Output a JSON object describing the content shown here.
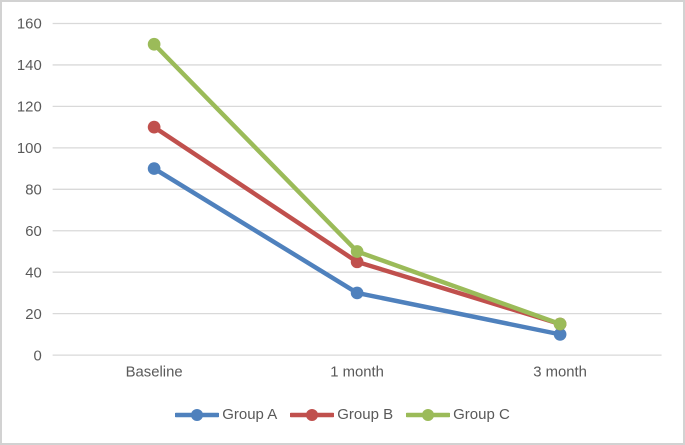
{
  "chart_data": {
    "type": "line",
    "title": "",
    "xlabel": "",
    "ylabel": "",
    "categories": [
      "Baseline",
      "1 month",
      "3 month"
    ],
    "series": [
      {
        "name": "Group A",
        "color": "#4F81BD",
        "values": [
          90,
          30,
          10
        ]
      },
      {
        "name": "Group B",
        "color": "#C0504D",
        "values": [
          110,
          45,
          15
        ]
      },
      {
        "name": "Group C",
        "color": "#9BBB59",
        "values": [
          150,
          50,
          15
        ]
      }
    ],
    "ylim": [
      0,
      160
    ],
    "yticks": [
      0,
      20,
      40,
      60,
      80,
      100,
      120,
      140,
      160
    ],
    "grid": true,
    "gridline_color": "#D9D9D9",
    "axis_text_color": "#595959",
    "background_color": "#FFFFFF",
    "frame_border_color": "#D2D2D2",
    "legend_position": "bottom-center",
    "marker_shape": "circle",
    "line_width": 4.5,
    "marker_radius": 6.4
  }
}
